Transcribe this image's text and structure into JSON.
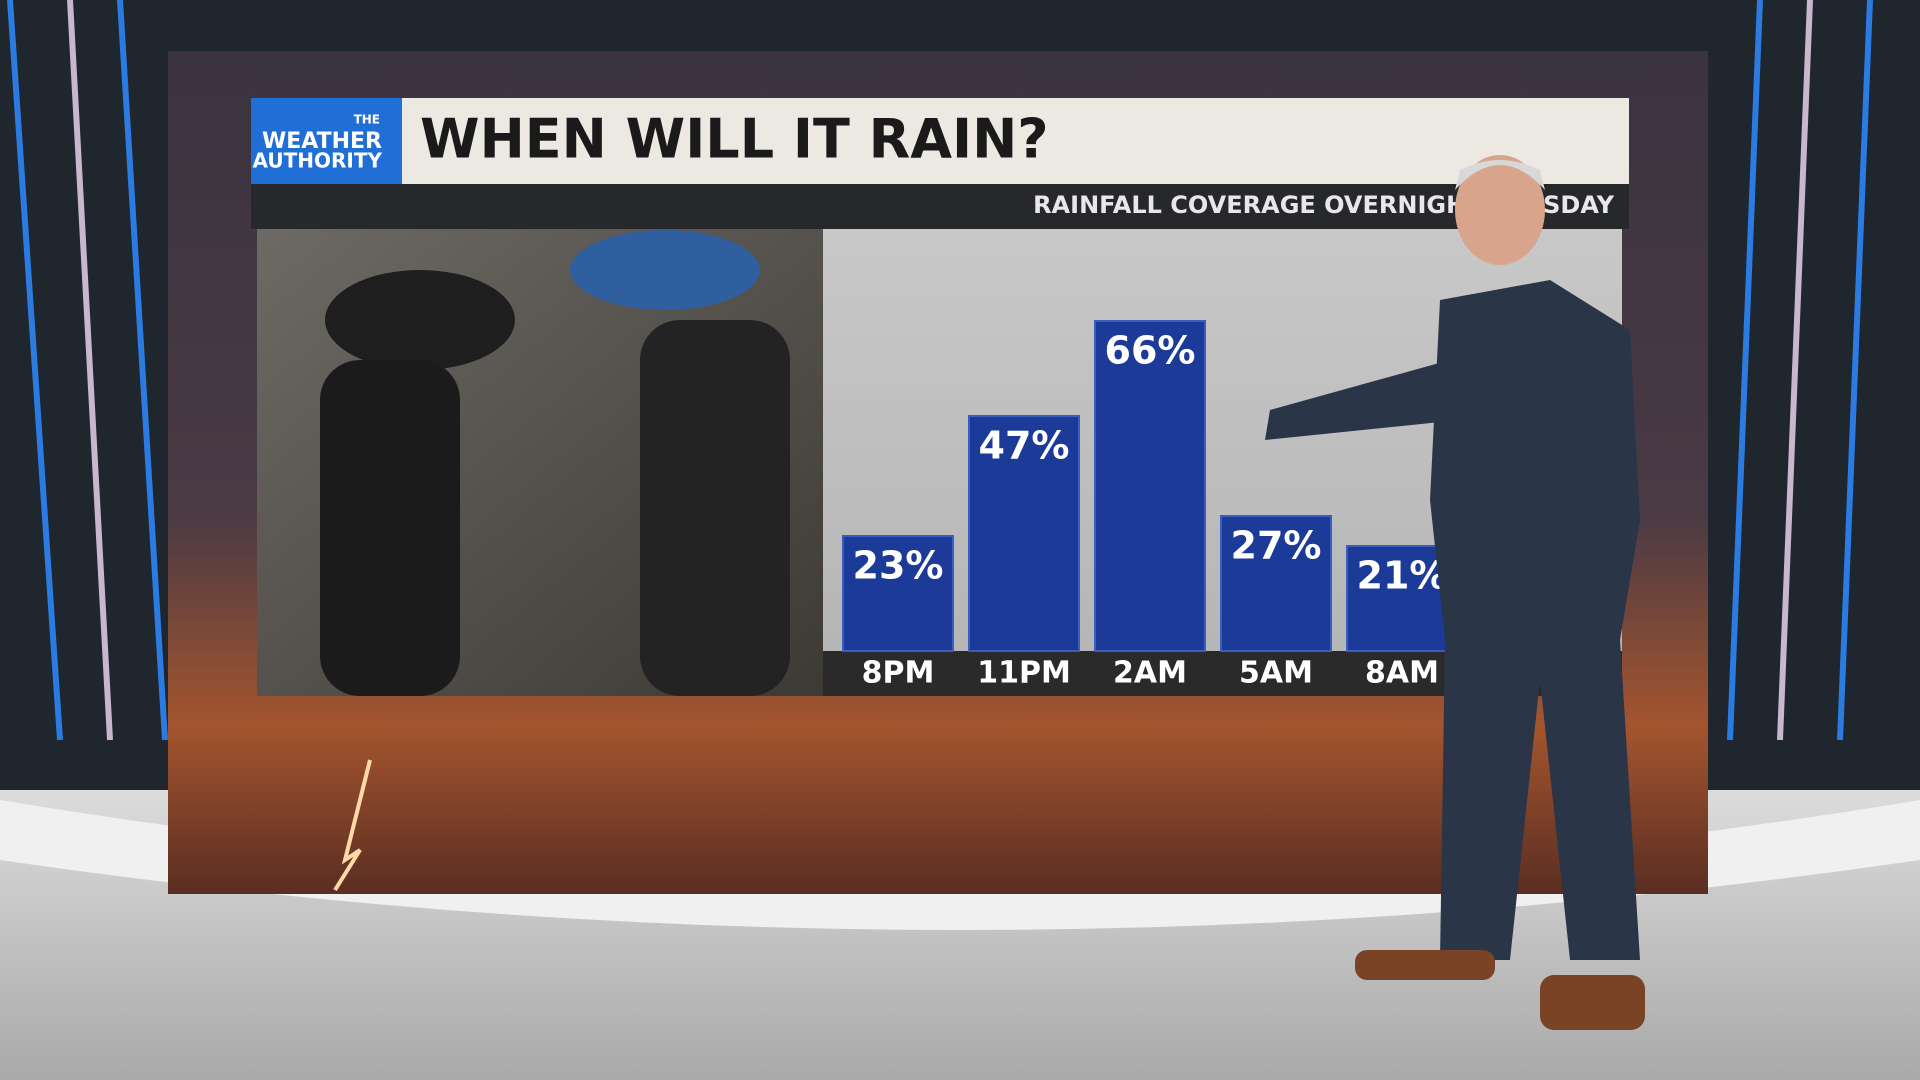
{
  "logo": {
    "line1": "THE",
    "line2": "WEATHER",
    "line3": "AUTHORITY"
  },
  "chart_data": {
    "type": "bar",
    "title": "WHEN WILL IT RAIN?",
    "subtitle": "RAINFALL COVERAGE OVERNIGHT TUESDAY",
    "categories": [
      "8PM",
      "11PM",
      "2AM",
      "5AM",
      "8AM"
    ],
    "values": [
      23,
      47,
      66,
      27,
      21
    ],
    "value_labels": [
      "23%",
      "47%",
      "66%",
      "27%",
      "21%"
    ],
    "color": "#1c3a98"
  }
}
